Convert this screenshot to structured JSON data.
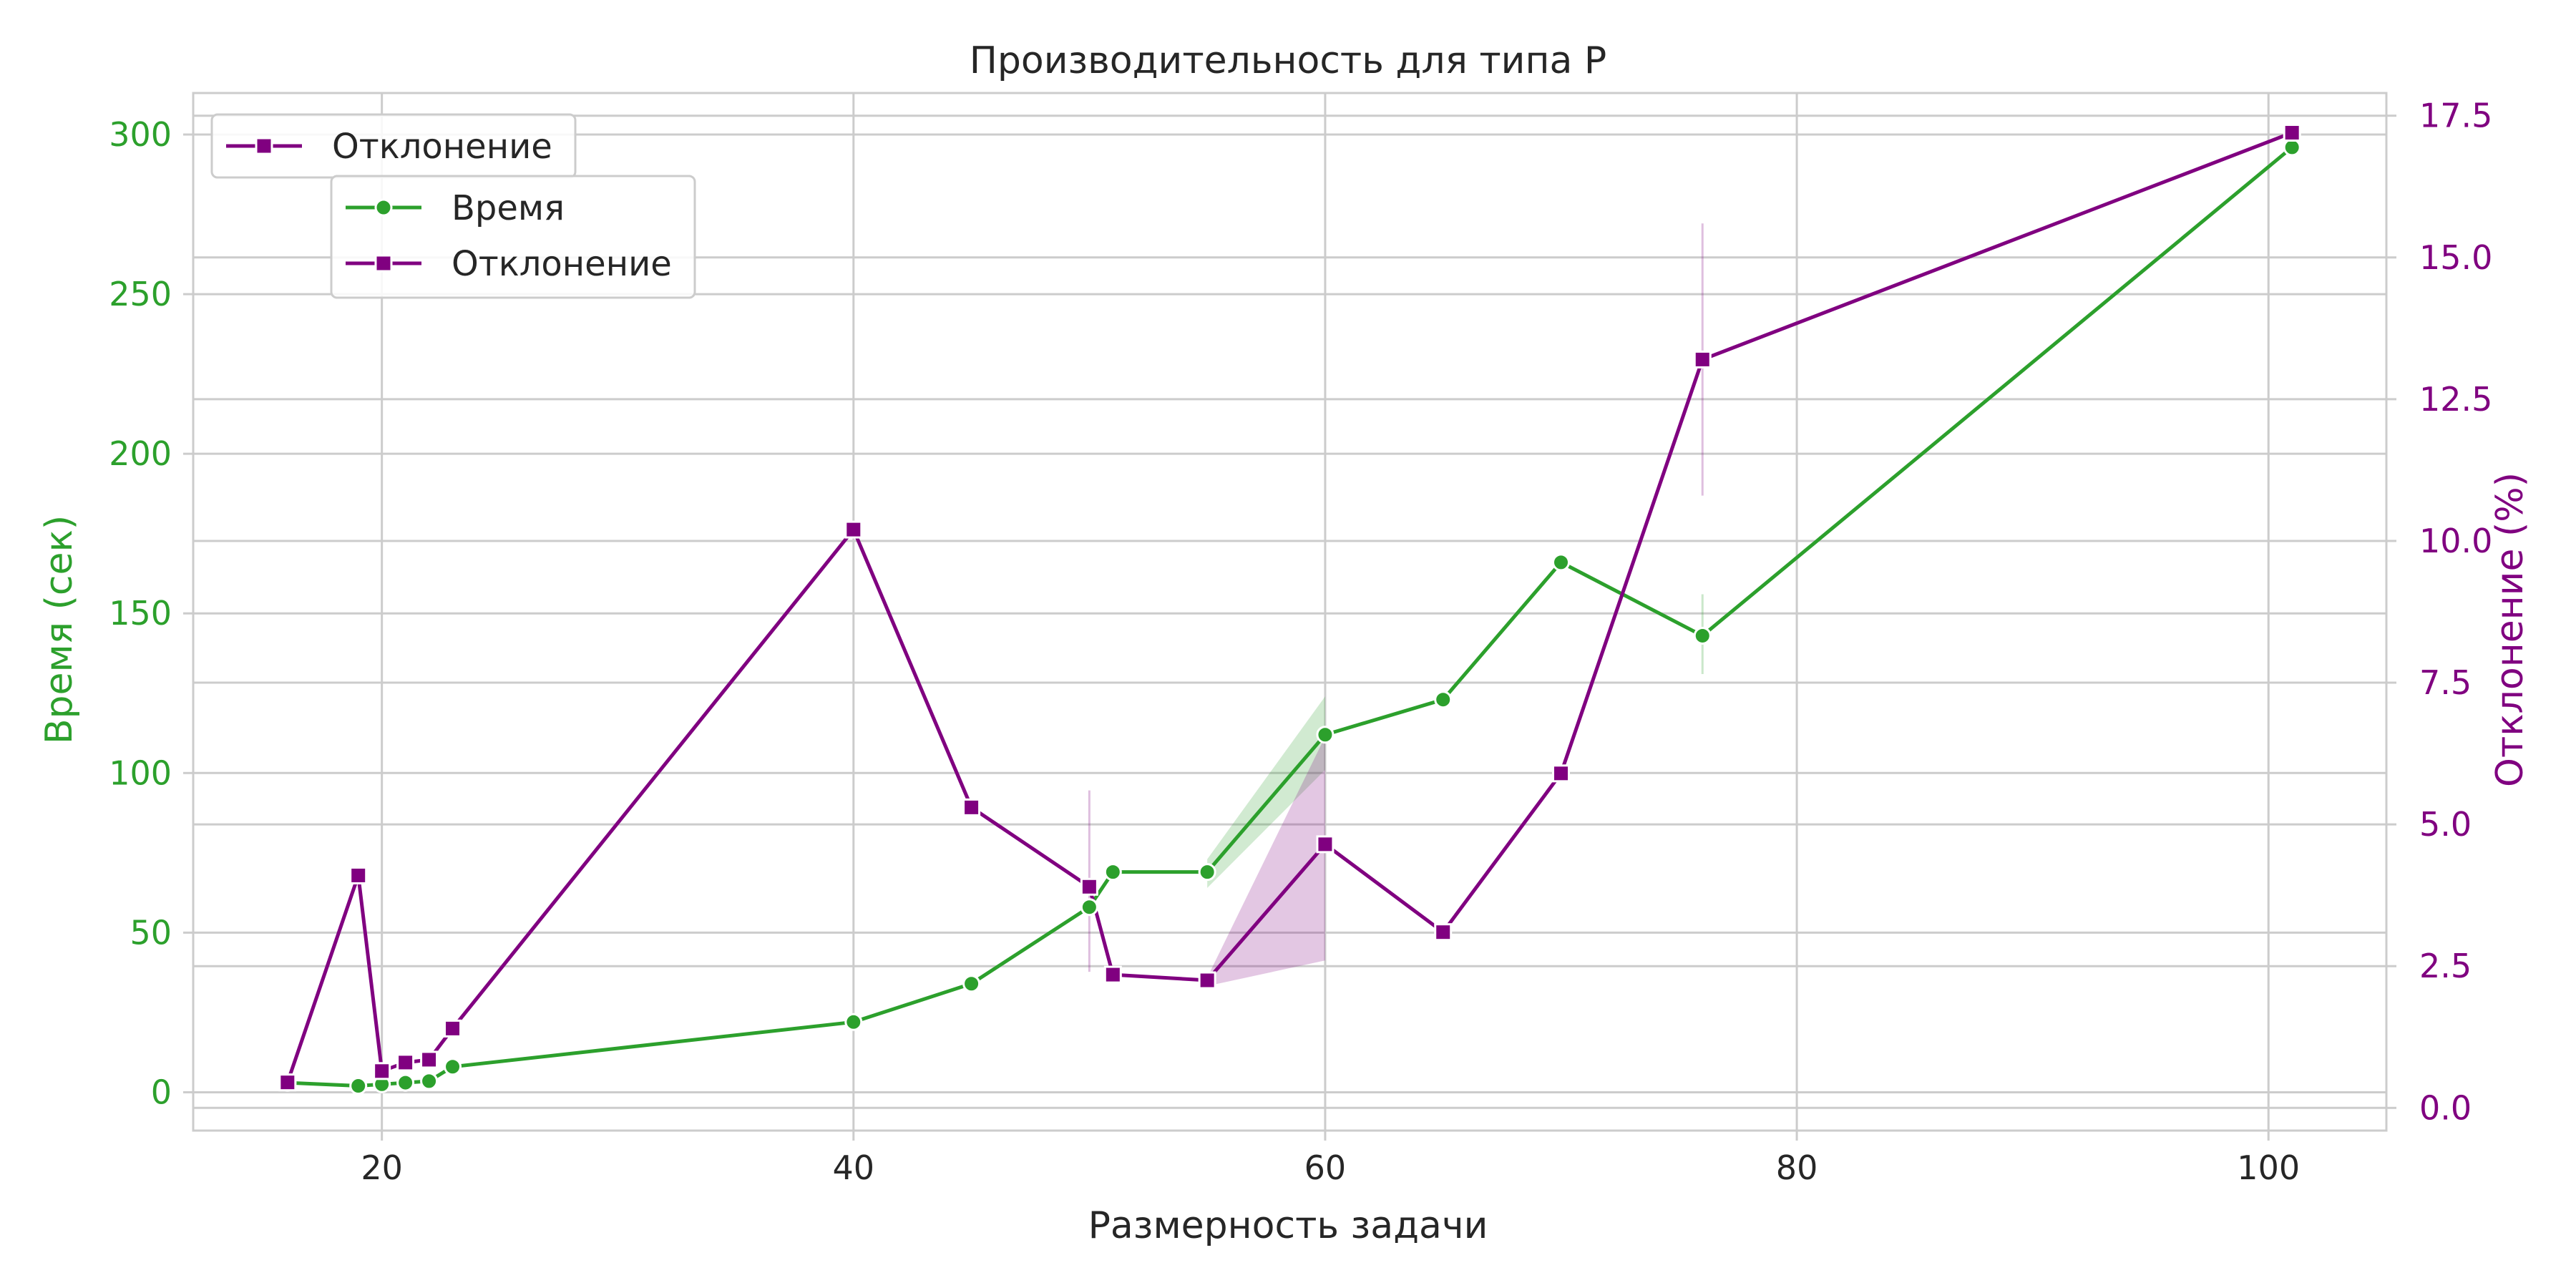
{
  "chart_data": {
    "type": "line",
    "title": "Производительность для типа P",
    "xlabel": "Размерность задачи",
    "ylabel_left": "Время (сек)",
    "ylabel_right": "Отклонение (%)",
    "xlim": [
      12,
      105
    ],
    "ylim_left": [
      -12,
      313
    ],
    "ylim_right": [
      -0.4,
      17.9
    ],
    "xticks": [
      20,
      40,
      60,
      80,
      100
    ],
    "yticks_left": [
      0,
      50,
      100,
      150,
      200,
      250,
      300
    ],
    "yticks_right": [
      0.0,
      2.5,
      5.0,
      7.5,
      10.0,
      12.5,
      15.0,
      17.5
    ],
    "grid": true,
    "colors": {
      "time": "#2ca02c",
      "deviation": "#800080"
    },
    "legends": [
      {
        "placement": "top-left",
        "entries": [
          {
            "label": "Отклонение",
            "series": "deviation"
          }
        ]
      },
      {
        "placement": "top-left-inner",
        "entries": [
          {
            "label": "Время",
            "series": "time"
          },
          {
            "label": "Отклонение",
            "series": "deviation"
          }
        ]
      }
    ],
    "series": [
      {
        "name": "Время",
        "key": "time",
        "axis": "left",
        "marker": "circle",
        "x": [
          16,
          19,
          20,
          21,
          22,
          23,
          40,
          45,
          50,
          51,
          55,
          60,
          65,
          70,
          76,
          101
        ],
        "y": [
          3,
          2,
          2.5,
          3,
          3.5,
          8,
          22,
          34,
          58,
          69,
          69,
          112,
          123,
          166,
          143,
          296
        ],
        "ci": [
          {
            "x": 55,
            "low": 64,
            "high": 73
          },
          {
            "x": 60,
            "low": 101,
            "high": 124
          },
          {
            "x": 76,
            "low": 131,
            "high": 156
          }
        ]
      },
      {
        "name": "Отклонение",
        "key": "deviation",
        "axis": "right",
        "marker": "square",
        "x": [
          16,
          19,
          20,
          21,
          22,
          23,
          40,
          45,
          50,
          51,
          55,
          60,
          65,
          70,
          76,
          101
        ],
        "y": [
          0.45,
          4.1,
          0.65,
          0.8,
          0.85,
          1.4,
          10.2,
          5.3,
          3.9,
          2.35,
          2.25,
          4.65,
          3.1,
          5.9,
          13.2,
          17.2
        ],
        "ci": [
          {
            "x": 50,
            "low": 2.4,
            "high": 5.6
          },
          {
            "x": 55,
            "low": 2.15,
            "high": 2.3
          },
          {
            "x": 60,
            "low": 2.6,
            "high": 6.55
          },
          {
            "x": 76,
            "low": 10.8,
            "high": 15.6
          }
        ]
      }
    ]
  }
}
